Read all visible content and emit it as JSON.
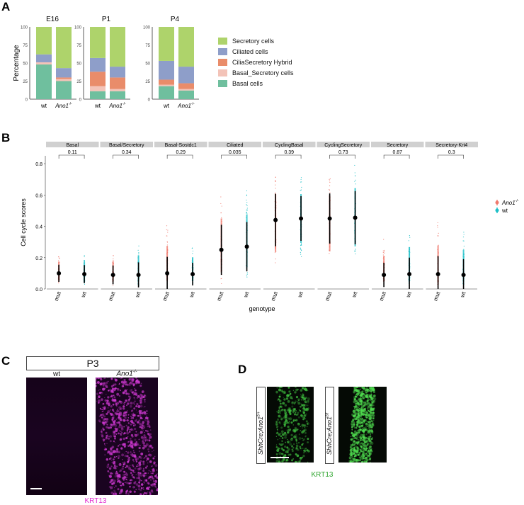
{
  "panels": {
    "A": "A",
    "B": "B",
    "C": "C",
    "D": "D"
  },
  "panel_a": {
    "ylabel": "Percentage",
    "yticks": [
      "0",
      "25",
      "50",
      "75",
      "100"
    ],
    "legend": [
      {
        "name": "Secretory cells",
        "color": "#aed36b"
      },
      {
        "name": "Ciliated cells",
        "color": "#8e9ec9"
      },
      {
        "name": "CiliaSecretory Hybrid",
        "color": "#e98c6a"
      },
      {
        "name": "Basal_Secretory cells",
        "color": "#f3c3b8"
      },
      {
        "name": "Basal cells",
        "color": "#6fbf9e"
      }
    ]
  },
  "chart_data": [
    {
      "type": "bar",
      "title": "E16",
      "categories": [
        "wt",
        "Ano1-/-"
      ],
      "ylabel": "Percentage",
      "ylim": [
        0,
        100
      ],
      "series": [
        {
          "name": "Basal cells",
          "values": [
            48,
            25
          ]
        },
        {
          "name": "Basal_Secretory cells",
          "values": [
            3,
            3
          ]
        },
        {
          "name": "CiliaSecretory Hybrid",
          "values": [
            0,
            2
          ]
        },
        {
          "name": "Ciliated cells",
          "values": [
            11,
            13
          ]
        },
        {
          "name": "Secretory cells",
          "values": [
            38,
            57
          ]
        }
      ]
    },
    {
      "type": "bar",
      "title": "P1",
      "categories": [
        "wt",
        "Ano1-/-"
      ],
      "ylabel": "Percentage",
      "ylim": [
        0,
        100
      ],
      "series": [
        {
          "name": "Basal cells",
          "values": [
            11,
            11
          ]
        },
        {
          "name": "Basal_Secretory cells",
          "values": [
            7,
            3
          ]
        },
        {
          "name": "CiliaSecretory Hybrid",
          "values": [
            20,
            16
          ]
        },
        {
          "name": "Ciliated cells",
          "values": [
            19,
            15
          ]
        },
        {
          "name": "Secretory cells",
          "values": [
            43,
            55
          ]
        }
      ]
    },
    {
      "type": "bar",
      "title": "P4",
      "categories": [
        "wt",
        "Ano1-/-"
      ],
      "ylabel": "Percentage",
      "ylim": [
        0,
        100
      ],
      "series": [
        {
          "name": "Basal cells",
          "values": [
            18,
            12
          ]
        },
        {
          "name": "Basal_Secretory cells",
          "values": [
            2,
            2
          ]
        },
        {
          "name": "CiliaSecretory Hybrid",
          "values": [
            7,
            8
          ]
        },
        {
          "name": "Ciliated cells",
          "values": [
            26,
            23
          ]
        },
        {
          "name": "Secretory cells",
          "values": [
            47,
            55
          ]
        }
      ]
    },
    {
      "type": "scatter",
      "ylabel": "Cell cycle scores",
      "xlabel": "genotype",
      "ylim": [
        0,
        0.85
      ],
      "yticks": [
        "0.0",
        "0.2",
        "0.4",
        "0.6",
        "0.8"
      ],
      "facets": [
        "Basal",
        "Basal/Secretory",
        "Basal-Sostdc1",
        "Ciliated",
        "CyclingBasal",
        "CyclingSecretory",
        "Secretory",
        "Secretory-Krt4"
      ],
      "pvalues": [
        "0.11",
        "0.34",
        "0.29",
        "0.035",
        "0.39",
        "0.73",
        "0.87",
        "0.3"
      ],
      "categories": [
        "mut",
        "wt"
      ],
      "series": [
        {
          "name": "Ano1-/-",
          "color": "#f07a6e",
          "median": [
            0.1,
            0.09,
            0.1,
            0.25,
            0.44,
            0.45,
            0.09,
            0.095
          ],
          "range": [
            [
              0.03,
              0.25
            ],
            [
              0.02,
              0.26
            ],
            [
              0.03,
              0.45
            ],
            [
              0.01,
              0.65
            ],
            [
              0.1,
              0.77
            ],
            [
              0.1,
              0.74
            ],
            [
              0.02,
              0.33
            ],
            [
              0.0,
              0.46
            ]
          ]
        },
        {
          "name": "wt",
          "color": "#1bbfc7",
          "median": [
            0.095,
            0.09,
            0.095,
            0.27,
            0.45,
            0.455,
            0.095,
            0.09
          ],
          "range": [
            [
              0.02,
              0.25
            ],
            [
              0.02,
              0.34
            ],
            [
              0.02,
              0.31
            ],
            [
              0.05,
              0.68
            ],
            [
              0.19,
              0.76
            ],
            [
              0.15,
              0.83
            ],
            [
              0.02,
              0.44
            ],
            [
              0.01,
              0.41
            ]
          ]
        }
      ],
      "legend": [
        {
          "label": "Ano1",
          "sup": "-/-",
          "color": "#f07a6e"
        },
        {
          "label": "wt",
          "sup": "",
          "color": "#1bbfc7"
        }
      ]
    }
  ],
  "panel_c": {
    "title": "P3",
    "left": "wt",
    "right": "Ano1",
    "right_sup": "-/-",
    "caption": "KRT13",
    "caption_color": "#e02ad0"
  },
  "panel_d": {
    "left": "ShhCre;Ano1",
    "left_sup": "f/+",
    "right": "ShhCre;Ano1",
    "right_sup": "f/f",
    "caption": "KRT13",
    "caption_color": "#2ea52e"
  }
}
